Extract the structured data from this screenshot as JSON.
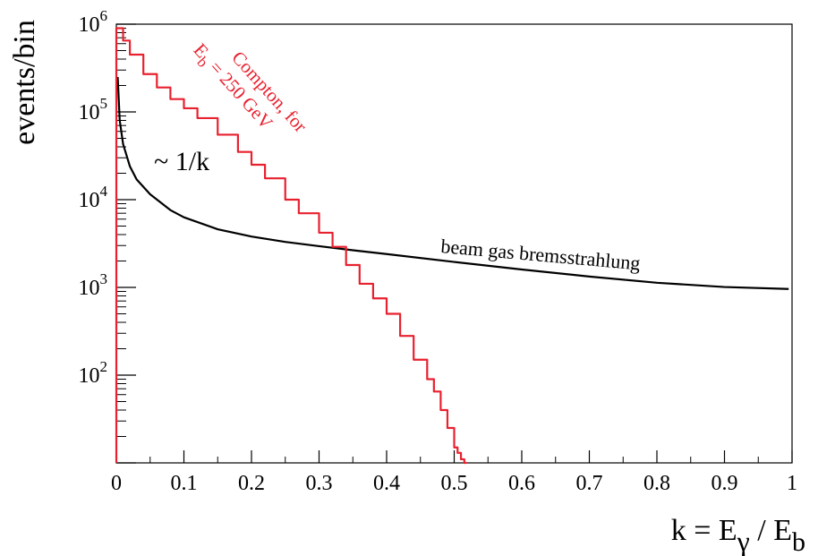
{
  "chart_data": {
    "type": "line",
    "xlabel": {
      "main": "k = E",
      "sub1": "γ",
      "mid": " / E",
      "sub2": "b"
    },
    "ylabel": "events/bin",
    "xlim": [
      0,
      1
    ],
    "ylim": [
      10,
      1000000
    ],
    "yscale": "log",
    "x_ticks": [
      0,
      0.1,
      0.2,
      0.3,
      0.4,
      0.5,
      0.6,
      0.7,
      0.8,
      0.9,
      1
    ],
    "x_tick_labels": [
      "0",
      "0.1",
      "0.2",
      "0.3",
      "0.4",
      "0.5",
      "0.6",
      "0.7",
      "0.8",
      "0.9",
      "1"
    ],
    "y_ticks": [
      100,
      1000,
      10000,
      100000,
      1000000
    ],
    "y_tick_labels": [
      {
        "base": "10",
        "exp": "2"
      },
      {
        "base": "10",
        "exp": "3"
      },
      {
        "base": "10",
        "exp": "4"
      },
      {
        "base": "10",
        "exp": "5"
      },
      {
        "base": "10",
        "exp": "6"
      }
    ],
    "grid": false,
    "series": [
      {
        "name": "beam gas bremsstrahlung",
        "color": "#000000",
        "style": "smooth",
        "x": [
          0.002,
          0.005,
          0.01,
          0.02,
          0.03,
          0.05,
          0.08,
          0.1,
          0.15,
          0.2,
          0.25,
          0.3,
          0.35,
          0.4,
          0.5,
          0.6,
          0.7,
          0.8,
          0.9,
          0.995
        ],
        "y": [
          250000,
          80000,
          43000,
          24000,
          17000,
          11500,
          7600,
          6300,
          4600,
          3800,
          3300,
          2950,
          2650,
          2400,
          1950,
          1600,
          1330,
          1130,
          1010,
          960
        ]
      },
      {
        "name": "Compton, for E_b = 250 GeV",
        "color": "#e8212f",
        "style": "step",
        "x": [
          0,
          0.01,
          0.02,
          0.04,
          0.06,
          0.08,
          0.1,
          0.12,
          0.15,
          0.18,
          0.2,
          0.22,
          0.25,
          0.27,
          0.3,
          0.32,
          0.34,
          0.36,
          0.38,
          0.4,
          0.42,
          0.44,
          0.46,
          0.47,
          0.48,
          0.49,
          0.5,
          0.505,
          0.51,
          0.515
        ],
        "y": [
          900000,
          650000,
          450000,
          270000,
          190000,
          140000,
          110000,
          85000,
          55000,
          35000,
          25000,
          17500,
          10000,
          7000,
          4200,
          2900,
          1800,
          1100,
          750,
          500,
          280,
          150,
          90,
          65,
          40,
          25,
          15,
          13,
          11,
          10
        ]
      }
    ],
    "annotations": [
      {
        "text": "~ 1/k",
        "color": "#000000"
      },
      {
        "text": "beam gas bremsstrahlung",
        "color": "#000000"
      },
      {
        "line1": "Compton, for",
        "line2_main": "E",
        "line2_sub": "b",
        "line2_rest": " = 250 GeV",
        "color": "#e8212f"
      }
    ]
  }
}
